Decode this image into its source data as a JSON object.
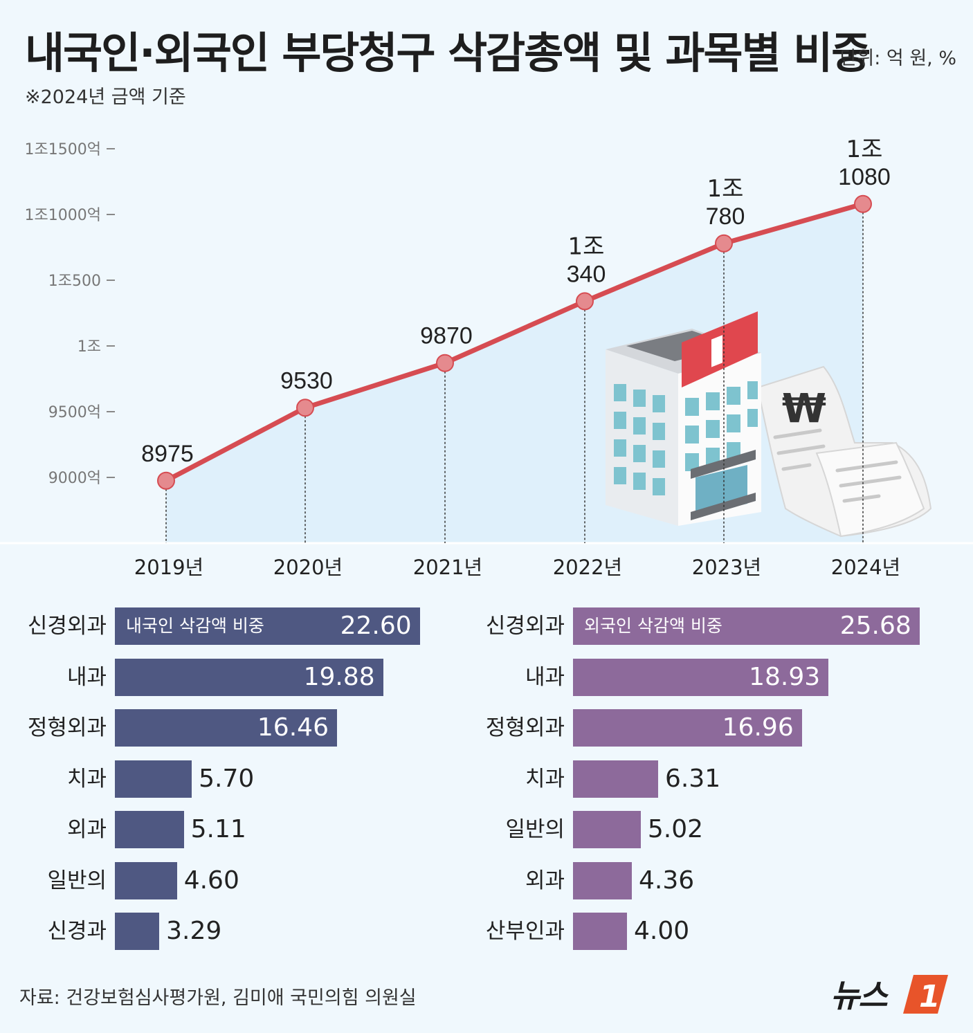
{
  "header": {
    "title": "내국인·외국인 부당청구 삭감총액 및 과목별 비중",
    "unit": "단위: 억 원, %",
    "note": "※2024년 금액 기준"
  },
  "colors": {
    "line": "#d64c52",
    "area": "#dceefa",
    "domestic_bar": "#4f5882",
    "foreign_bar": "#8d6a9b",
    "logo_accent": "#e8542a"
  },
  "chart_data": [
    {
      "type": "line",
      "title": "부당청구 삭감총액",
      "x": [
        "2019년",
        "2020년",
        "2021년",
        "2022년",
        "2023년",
        "2024년"
      ],
      "values": [
        8975,
        9530,
        9870,
        10340,
        10780,
        11080
      ],
      "value_labels": [
        {
          "top": "",
          "bottom": "8975"
        },
        {
          "top": "",
          "bottom": "9530"
        },
        {
          "top": "",
          "bottom": "9870"
        },
        {
          "top": "1조",
          "bottom": "340"
        },
        {
          "top": "1조",
          "bottom": "780"
        },
        {
          "top": "1조",
          "bottom": "1080"
        }
      ],
      "ylim": [
        8500,
        11700
      ],
      "y_ticks": [
        {
          "value": 9000,
          "label": "9000억"
        },
        {
          "value": 9500,
          "label": "9500억"
        },
        {
          "value": 10000,
          "label": "1조"
        },
        {
          "value": 10500,
          "label": "1조500"
        },
        {
          "value": 11000,
          "label": "1조1000억"
        },
        {
          "value": 11500,
          "label": "1조1500억"
        }
      ],
      "grid": false,
      "area_fill": true
    },
    {
      "type": "bar",
      "orientation": "horizontal",
      "series_name": "내국인 삭감액 비중",
      "categories": [
        "신경외과",
        "내과",
        "정형외과",
        "치과",
        "외과",
        "일반의",
        "신경과"
      ],
      "values": [
        22.6,
        19.88,
        16.46,
        5.7,
        5.11,
        4.6,
        3.29
      ],
      "value_labels": [
        "22.60",
        "19.88",
        "16.46",
        "5.70",
        "5.11",
        "4.60",
        "3.29"
      ]
    },
    {
      "type": "bar",
      "orientation": "horizontal",
      "series_name": "외국인 삭감액 비중",
      "categories": [
        "신경외과",
        "내과",
        "정형외과",
        "치과",
        "일반의",
        "외과",
        "산부인과"
      ],
      "values": [
        25.68,
        18.93,
        16.96,
        6.31,
        5.02,
        4.36,
        4.0
      ],
      "value_labels": [
        "25.68",
        "18.93",
        "16.96",
        "6.31",
        "5.02",
        "4.36",
        "4.00"
      ]
    }
  ],
  "footer": {
    "source": "자료: 건강보험심사평가원, 김미애 국민의힘 의원실",
    "logo_text": "뉴스",
    "logo_mark": "1"
  }
}
